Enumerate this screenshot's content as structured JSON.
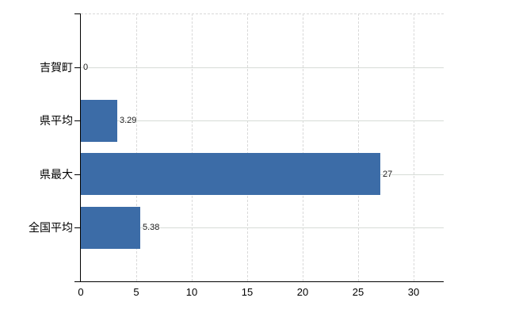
{
  "chart_data": {
    "type": "bar",
    "orientation": "horizontal",
    "title": "",
    "xlabel": "",
    "ylabel": "",
    "categories": [
      "吉賀町",
      "県平均",
      "県最大",
      "全国平均"
    ],
    "values": [
      0,
      3.29,
      27,
      5.38
    ],
    "value_labels": [
      "0",
      "3.29",
      "27",
      "5.38"
    ],
    "x_ticks": [
      0,
      5,
      10,
      15,
      20,
      25,
      30
    ],
    "x_tick_labels": [
      "0",
      "5",
      "10",
      "15",
      "20",
      "25",
      "30"
    ],
    "xlim": [
      0,
      32.7
    ],
    "grid": true,
    "legend": false,
    "colors": {
      "bar": "#3c6ca7",
      "axis": "#000000",
      "gridline_horizontal": "#d7dcd7",
      "gridline_vertical": "#d9d9d9",
      "background": "#ffffff",
      "text": "#000000"
    }
  }
}
